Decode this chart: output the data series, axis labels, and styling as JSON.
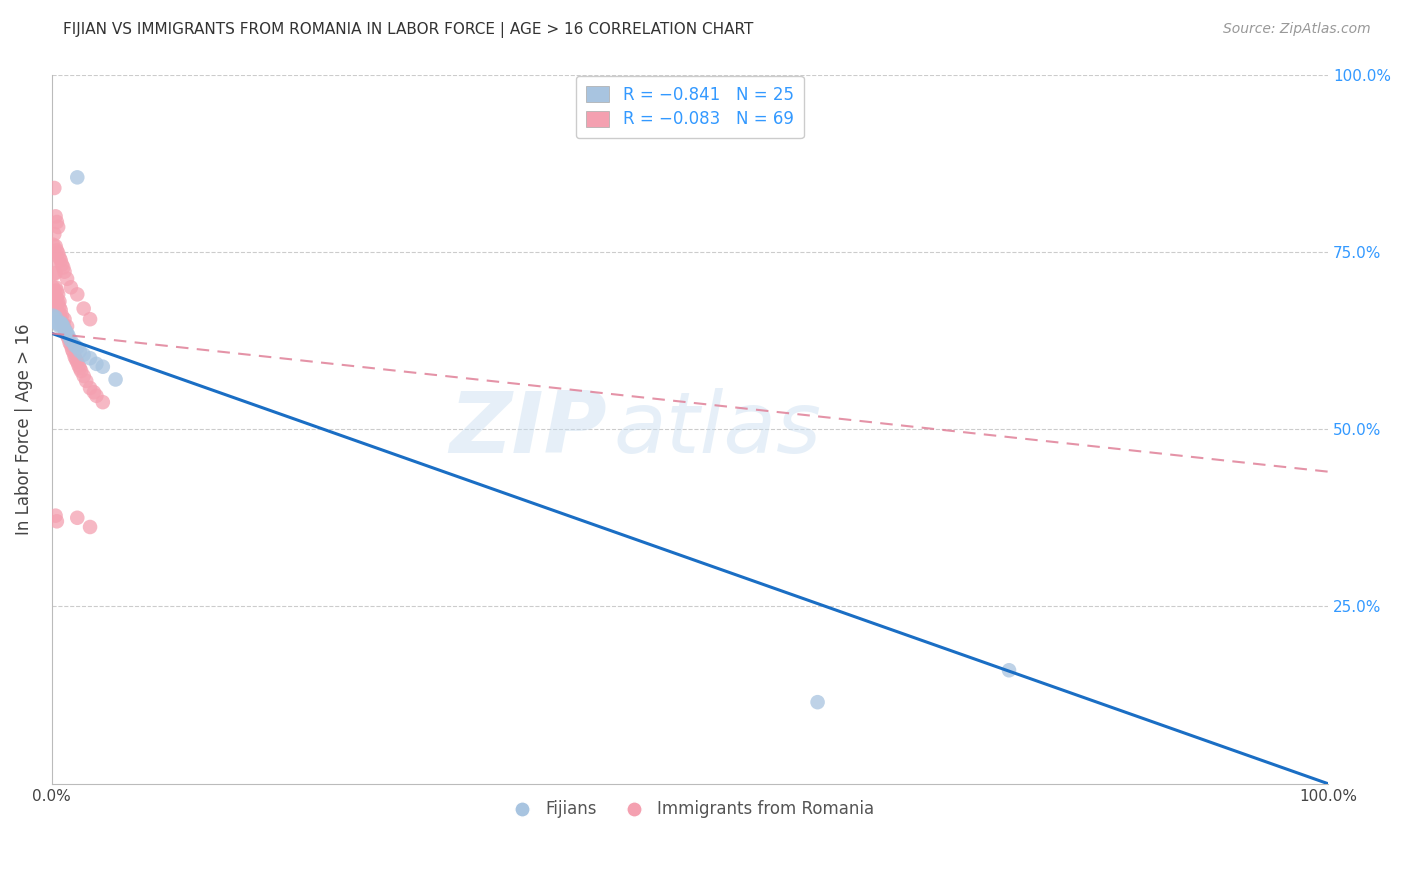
{
  "title": "FIJIAN VS IMMIGRANTS FROM ROMANIA IN LABOR FORCE | AGE > 16 CORRELATION CHART",
  "source": "Source: ZipAtlas.com",
  "ylabel": "In Labor Force | Age > 16",
  "xlim": [
    0.0,
    1.0
  ],
  "ylim": [
    0.0,
    1.0
  ],
  "legend_r1": "R = −0.841",
  "legend_n1": "N = 25",
  "legend_r2": "R = −0.083",
  "legend_n2": "N = 69",
  "fijian_color": "#a8c4e0",
  "romania_color": "#f4a0b0",
  "fijian_line_color": "#1a6ec4",
  "romania_line_color": "#e08098",
  "watermark_zip": "ZIP",
  "watermark_atlas": "atlas",
  "fijian_line_x0": 0.0,
  "fijian_line_y0": 0.635,
  "fijian_line_x1": 1.0,
  "fijian_line_y1": 0.0,
  "romania_line_x0": 0.0,
  "romania_line_y0": 0.635,
  "romania_line_x1": 1.0,
  "romania_line_y1": 0.44,
  "fijian_x": [
    0.001,
    0.002,
    0.003,
    0.004,
    0.005,
    0.006,
    0.007,
    0.008,
    0.009,
    0.01,
    0.011,
    0.012,
    0.013,
    0.015,
    0.018,
    0.02,
    0.022,
    0.025,
    0.03,
    0.035,
    0.04,
    0.05,
    0.6,
    0.75,
    0.02
  ],
  "fijian_y": [
    0.66,
    0.655,
    0.658,
    0.65,
    0.648,
    0.645,
    0.65,
    0.648,
    0.645,
    0.64,
    0.638,
    0.635,
    0.632,
    0.625,
    0.618,
    0.615,
    0.61,
    0.605,
    0.6,
    0.592,
    0.588,
    0.57,
    0.115,
    0.16,
    0.855
  ],
  "romania_x": [
    0.001,
    0.001,
    0.001,
    0.002,
    0.002,
    0.002,
    0.002,
    0.003,
    0.003,
    0.003,
    0.004,
    0.004,
    0.004,
    0.005,
    0.005,
    0.005,
    0.006,
    0.006,
    0.006,
    0.007,
    0.007,
    0.008,
    0.008,
    0.009,
    0.01,
    0.01,
    0.011,
    0.012,
    0.012,
    0.013,
    0.014,
    0.015,
    0.016,
    0.017,
    0.018,
    0.019,
    0.02,
    0.021,
    0.022,
    0.023,
    0.025,
    0.027,
    0.03,
    0.033,
    0.035,
    0.04,
    0.001,
    0.002,
    0.003,
    0.004,
    0.005,
    0.006,
    0.007,
    0.008,
    0.009,
    0.01,
    0.012,
    0.015,
    0.02,
    0.025,
    0.03,
    0.002,
    0.003,
    0.004,
    0.005,
    0.02,
    0.03,
    0.003,
    0.004
  ],
  "romania_y": [
    0.67,
    0.68,
    0.7,
    0.685,
    0.695,
    0.72,
    0.74,
    0.68,
    0.7,
    0.72,
    0.67,
    0.685,
    0.695,
    0.665,
    0.678,
    0.69,
    0.66,
    0.672,
    0.68,
    0.655,
    0.668,
    0.65,
    0.66,
    0.648,
    0.642,
    0.655,
    0.638,
    0.632,
    0.645,
    0.628,
    0.622,
    0.618,
    0.612,
    0.608,
    0.602,
    0.598,
    0.595,
    0.59,
    0.586,
    0.582,
    0.575,
    0.568,
    0.558,
    0.552,
    0.547,
    0.538,
    0.76,
    0.775,
    0.758,
    0.752,
    0.748,
    0.742,
    0.738,
    0.732,
    0.728,
    0.722,
    0.712,
    0.7,
    0.69,
    0.67,
    0.655,
    0.84,
    0.8,
    0.792,
    0.785,
    0.375,
    0.362,
    0.378,
    0.37
  ]
}
